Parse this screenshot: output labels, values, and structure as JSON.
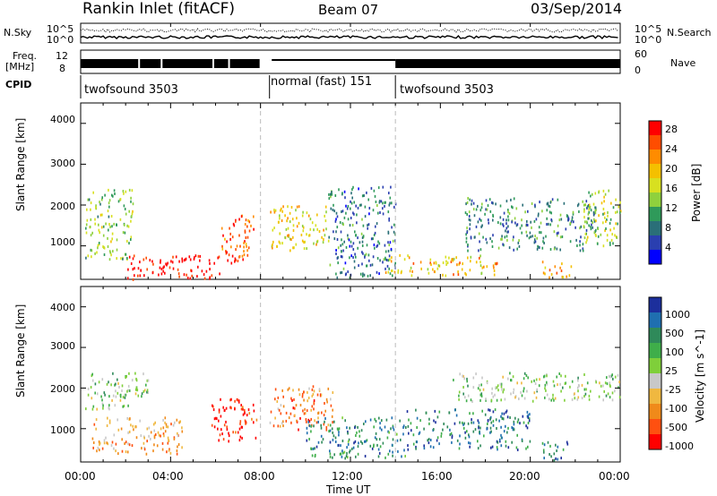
{
  "header": {
    "title": "Rankin Inlet (fitACF)",
    "beam": "Beam 07",
    "date": "03/Sep/2014"
  },
  "status_panel": {
    "nsky_label": "N.Sky",
    "nsky_ticks": [
      "10^5",
      "10^0"
    ],
    "nsearch_label": "N.Search",
    "nsearch_ticks": [
      "10^5",
      "10^0"
    ],
    "freq_label": "Freq.",
    "freq_unit": "[MHz]",
    "freq_ticks": [
      "12",
      "8"
    ],
    "nave_label": "Nave",
    "nave_ticks": [
      "60",
      "0"
    ],
    "cpid_label": "CPID",
    "cpid_segments": [
      {
        "name": "twofsound 3503",
        "start_hour": 0,
        "end_hour": 8
      },
      {
        "name": "normal (fast) 151",
        "start_hour": 8,
        "end_hour": 14
      },
      {
        "name": "twofsound 3503",
        "start_hour": 14,
        "end_hour": 24
      }
    ]
  },
  "chart_data": [
    {
      "type": "heatmap",
      "title": "",
      "xlabel": "Time UT",
      "ylabel": "Slant Range [km]",
      "x_ticks": [
        "00:00",
        "04:00",
        "08:00",
        "12:00",
        "16:00",
        "20:00",
        "00:00"
      ],
      "xlim_hours": [
        0,
        24
      ],
      "ylim_km": [
        180,
        4500
      ],
      "y_ticks": [
        1000,
        2000,
        3000,
        4000
      ],
      "colorbar": {
        "label": "Power [dB]",
        "ticks": [
          "28",
          "24",
          "20",
          "16",
          "12",
          "8",
          "4"
        ],
        "colors": [
          "#ff0000",
          "#ff4d00",
          "#ff8c00",
          "#f4c000",
          "#d8e020",
          "#8fd13d",
          "#2f9a5a",
          "#2a6f78",
          "#2a3fb0",
          "#0000ff"
        ]
      },
      "scatter_regions": [
        {
          "t0": 0.2,
          "t1": 2.3,
          "r0": 700,
          "r1": 2400,
          "level": 0.45
        },
        {
          "t0": 2.0,
          "t1": 6.2,
          "r0": 200,
          "r1": 800,
          "level": 0.98
        },
        {
          "t0": 6.2,
          "t1": 7.7,
          "r0": 600,
          "r1": 1800,
          "level": 0.85
        },
        {
          "t0": 8.4,
          "t1": 11.0,
          "r0": 900,
          "r1": 2000,
          "level": 0.6
        },
        {
          "t0": 11.0,
          "t1": 14.0,
          "r0": 250,
          "r1": 2500,
          "level": 0.25
        },
        {
          "t0": 13.5,
          "t1": 18.5,
          "r0": 300,
          "r1": 800,
          "level": 0.65
        },
        {
          "t0": 17.0,
          "t1": 23.0,
          "r0": 900,
          "r1": 2200,
          "level": 0.3
        },
        {
          "t0": 22.3,
          "t1": 24.0,
          "r0": 1000,
          "r1": 2400,
          "level": 0.5
        },
        {
          "t0": 20.5,
          "t1": 21.8,
          "r0": 250,
          "r1": 650,
          "level": 0.75
        }
      ]
    },
    {
      "type": "heatmap",
      "title": "",
      "xlabel": "Time UT",
      "ylabel": "Slant Range [km]",
      "x_ticks": [
        "00:00",
        "04:00",
        "08:00",
        "12:00",
        "16:00",
        "20:00",
        "00:00"
      ],
      "xlim_hours": [
        0,
        24
      ],
      "ylim_km": [
        180,
        4500
      ],
      "y_ticks": [
        1000,
        2000,
        3000,
        4000
      ],
      "colorbar": {
        "label": "Velocity [m s^-1]",
        "ticks": [
          "1000",
          "500",
          "100",
          "25",
          "-25",
          "-100",
          "-500",
          "-1000"
        ],
        "colors": [
          "#1c2f9c",
          "#1f6fb0",
          "#2f8a5a",
          "#3fae4a",
          "#7fcf3a",
          "#c8c8c8",
          "#f0b840",
          "#f08a1a",
          "#ff5010",
          "#ff0000"
        ]
      },
      "scatter_regions": [
        {
          "t0": 0.2,
          "t1": 3.0,
          "r0": 1500,
          "r1": 2400,
          "level": 0.55
        },
        {
          "t0": 0.5,
          "t1": 4.5,
          "r0": 400,
          "r1": 1300,
          "level": 0.3
        },
        {
          "t0": 5.8,
          "t1": 7.8,
          "r0": 700,
          "r1": 1800,
          "level": 0.05
        },
        {
          "t0": 8.4,
          "t1": 11.2,
          "r0": 1000,
          "r1": 2100,
          "level": 0.25
        },
        {
          "t0": 10.0,
          "t1": 14.5,
          "r0": 300,
          "r1": 1300,
          "level": 0.75
        },
        {
          "t0": 14.5,
          "t1": 20.0,
          "r0": 500,
          "r1": 1500,
          "level": 0.78
        },
        {
          "t0": 16.5,
          "t1": 24.0,
          "r0": 1700,
          "r1": 2400,
          "level": 0.55
        },
        {
          "t0": 20.5,
          "t1": 21.8,
          "r0": 250,
          "r1": 700,
          "level": 0.8
        }
      ]
    }
  ]
}
